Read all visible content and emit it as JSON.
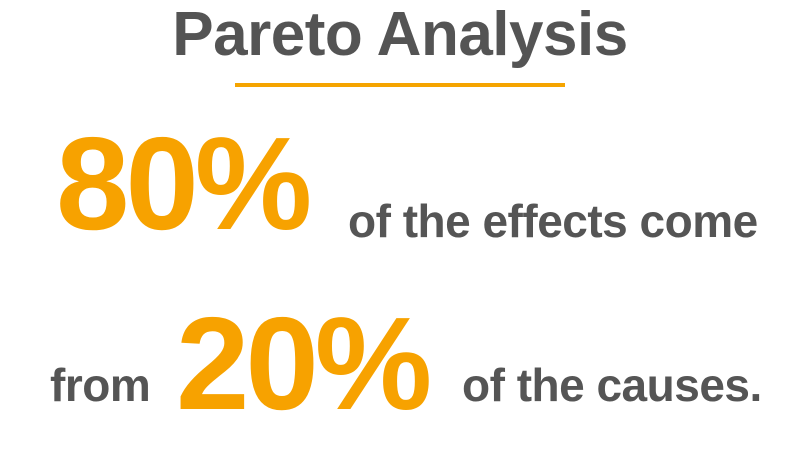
{
  "title": "Pareto Analysis",
  "colors": {
    "accent": "#f7a200",
    "text": "#555555",
    "background": "#ffffff"
  },
  "line1": {
    "percent": "80%",
    "text": "of the effects come"
  },
  "line2": {
    "prefix": "from",
    "percent": "20%",
    "text": "of the causes."
  }
}
